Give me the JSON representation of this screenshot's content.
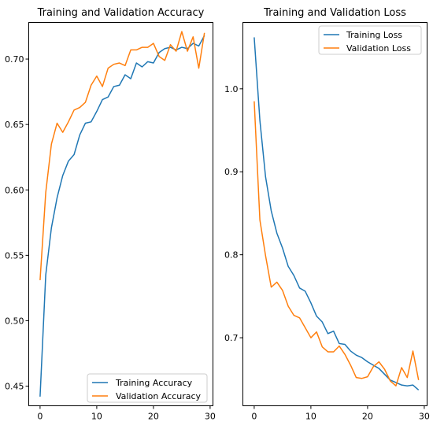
{
  "colors": {
    "training": "#1f77b4",
    "validation": "#ff7f0e"
  },
  "chart_data": [
    {
      "type": "line",
      "title": "Training and Validation Accuracy",
      "xlabel": "",
      "ylabel": "",
      "xlim": [
        -2,
        30.5
      ],
      "ylim": [
        0.435,
        0.728
      ],
      "xticks": [
        0,
        10,
        20,
        30
      ],
      "yticks": [
        0.45,
        0.5,
        0.55,
        0.6,
        0.65,
        0.7
      ],
      "ytick_labels": [
        "0.45",
        "0.50",
        "0.55",
        "0.60",
        "0.65",
        "0.70"
      ],
      "legend_position": "lower-right",
      "grid": false,
      "x": [
        0,
        1,
        2,
        3,
        4,
        5,
        6,
        7,
        8,
        9,
        10,
        11,
        12,
        13,
        14,
        15,
        16,
        17,
        18,
        19,
        20,
        21,
        22,
        23,
        24,
        25,
        26,
        27,
        28,
        29
      ],
      "series": [
        {
          "name": "Training Accuracy",
          "color_key": "training",
          "values": [
            0.442,
            0.535,
            0.571,
            0.594,
            0.611,
            0.622,
            0.627,
            0.642,
            0.651,
            0.652,
            0.66,
            0.669,
            0.671,
            0.679,
            0.68,
            0.688,
            0.685,
            0.697,
            0.694,
            0.698,
            0.697,
            0.705,
            0.708,
            0.709,
            0.707,
            0.709,
            0.708,
            0.712,
            0.71,
            0.718
          ]
        },
        {
          "name": "Validation Accuracy",
          "color_key": "validation",
          "values": [
            0.531,
            0.598,
            0.635,
            0.651,
            0.644,
            0.652,
            0.661,
            0.663,
            0.667,
            0.68,
            0.687,
            0.679,
            0.693,
            0.696,
            0.697,
            0.695,
            0.707,
            0.707,
            0.709,
            0.709,
            0.712,
            0.702,
            0.699,
            0.711,
            0.706,
            0.721,
            0.706,
            0.717,
            0.693,
            0.72
          ]
        }
      ]
    },
    {
      "type": "line",
      "title": "Training and Validation Loss",
      "xlabel": "",
      "ylabel": "",
      "xlim": [
        -2,
        30.5
      ],
      "ylim": [
        0.618,
        1.08
      ],
      "xticks": [
        0,
        10,
        20,
        30
      ],
      "yticks": [
        0.7,
        0.8,
        0.9,
        1.0
      ],
      "ytick_labels": [
        "0.7",
        "0.8",
        "0.9",
        "1.0"
      ],
      "legend_position": "upper-right",
      "grid": false,
      "x": [
        0,
        1,
        2,
        3,
        4,
        5,
        6,
        7,
        8,
        9,
        10,
        11,
        12,
        13,
        14,
        15,
        16,
        17,
        18,
        19,
        20,
        21,
        22,
        23,
        24,
        25,
        26,
        27,
        28,
        29
      ],
      "series": [
        {
          "name": "Training Loss",
          "color_key": "training",
          "values": [
            1.062,
            0.962,
            0.894,
            0.853,
            0.826,
            0.808,
            0.786,
            0.775,
            0.76,
            0.756,
            0.742,
            0.726,
            0.719,
            0.705,
            0.708,
            0.693,
            0.692,
            0.684,
            0.679,
            0.676,
            0.671,
            0.667,
            0.663,
            0.656,
            0.649,
            0.646,
            0.643,
            0.642,
            0.643,
            0.637
          ]
        },
        {
          "name": "Validation Loss",
          "color_key": "validation",
          "values": [
            0.985,
            0.842,
            0.799,
            0.761,
            0.767,
            0.757,
            0.738,
            0.727,
            0.724,
            0.712,
            0.7,
            0.707,
            0.689,
            0.683,
            0.683,
            0.69,
            0.68,
            0.667,
            0.652,
            0.651,
            0.653,
            0.665,
            0.671,
            0.662,
            0.648,
            0.642,
            0.664,
            0.652,
            0.684,
            0.649
          ]
        }
      ]
    }
  ]
}
